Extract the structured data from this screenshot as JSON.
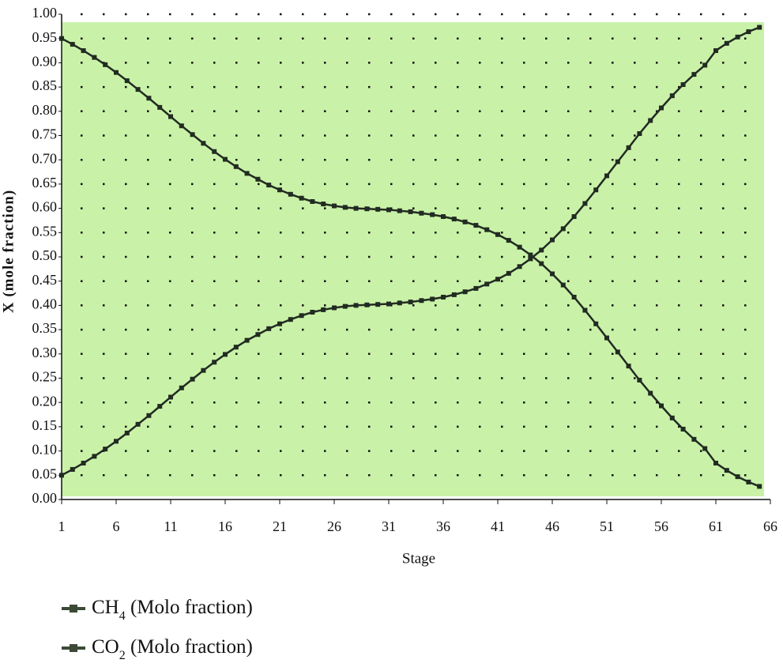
{
  "chart_data": {
    "type": "line",
    "x_label": "Stage",
    "y_label": "X (mole fraction)",
    "x": [
      1,
      2,
      3,
      4,
      5,
      6,
      7,
      8,
      9,
      10,
      11,
      12,
      13,
      14,
      15,
      16,
      17,
      18,
      19,
      20,
      21,
      22,
      23,
      24,
      25,
      26,
      27,
      28,
      29,
      30,
      31,
      32,
      33,
      34,
      35,
      36,
      37,
      38,
      39,
      40,
      41,
      42,
      43,
      44,
      45,
      46,
      47,
      48,
      49,
      50,
      51,
      52,
      53,
      54,
      55,
      56,
      57,
      58,
      59,
      60,
      61,
      62,
      63,
      64,
      65
    ],
    "series": [
      {
        "name": "CH4 (Molo fraction)",
        "color": "#222b22",
        "values": [
          0.95,
          0.938,
          0.925,
          0.911,
          0.896,
          0.88,
          0.863,
          0.845,
          0.827,
          0.808,
          0.789,
          0.77,
          0.752,
          0.734,
          0.717,
          0.701,
          0.686,
          0.672,
          0.66,
          0.648,
          0.638,
          0.629,
          0.621,
          0.614,
          0.609,
          0.605,
          0.602,
          0.6,
          0.599,
          0.598,
          0.597,
          0.595,
          0.593,
          0.59,
          0.587,
          0.583,
          0.578,
          0.572,
          0.565,
          0.556,
          0.546,
          0.534,
          0.52,
          0.504,
          0.486,
          0.465,
          0.442,
          0.417,
          0.39,
          0.362,
          0.333,
          0.304,
          0.275,
          0.246,
          0.219,
          0.193,
          0.168,
          0.145,
          0.124,
          0.105,
          0.075,
          0.06,
          0.047,
          0.036,
          0.027
        ]
      },
      {
        "name": "CO2 (Molo fraction)",
        "color": "#222b22",
        "values": [
          0.05,
          0.062,
          0.075,
          0.089,
          0.104,
          0.12,
          0.137,
          0.155,
          0.173,
          0.192,
          0.211,
          0.23,
          0.248,
          0.266,
          0.283,
          0.299,
          0.314,
          0.328,
          0.34,
          0.352,
          0.362,
          0.371,
          0.379,
          0.386,
          0.391,
          0.395,
          0.398,
          0.4,
          0.401,
          0.402,
          0.403,
          0.405,
          0.407,
          0.41,
          0.413,
          0.417,
          0.422,
          0.428,
          0.435,
          0.444,
          0.454,
          0.466,
          0.48,
          0.496,
          0.514,
          0.535,
          0.558,
          0.583,
          0.61,
          0.638,
          0.667,
          0.696,
          0.725,
          0.754,
          0.781,
          0.807,
          0.832,
          0.855,
          0.876,
          0.895,
          0.925,
          0.94,
          0.953,
          0.964,
          0.973
        ]
      }
    ],
    "xlim": [
      1,
      66
    ],
    "xticks": [
      1,
      6,
      11,
      16,
      21,
      26,
      31,
      36,
      41,
      46,
      51,
      56,
      61,
      66
    ],
    "ylim": [
      0,
      1
    ],
    "yticks": [
      {
        "value": 0,
        "label": "0.00"
      },
      {
        "value": 0.05,
        "label": "0.05"
      },
      {
        "value": 0.1,
        "label": "0.10"
      },
      {
        "value": 0.15,
        "label": "0.15"
      },
      {
        "value": 0.2,
        "label": "0.20"
      },
      {
        "value": 0.25,
        "label": "0.25"
      },
      {
        "value": 0.3,
        "label": "0.30"
      },
      {
        "value": 0.35,
        "label": "0.35"
      },
      {
        "value": 0.4,
        "label": "0.40"
      },
      {
        "value": 0.45,
        "label": "0.45"
      },
      {
        "value": 0.5,
        "label": "0.50"
      },
      {
        "value": 0.55,
        "label": "0.55"
      },
      {
        "value": 0.6,
        "label": "0.60"
      },
      {
        "value": 0.65,
        "label": "0.65"
      },
      {
        "value": 0.7,
        "label": "0.70"
      },
      {
        "value": 0.75,
        "label": "0.75"
      },
      {
        "value": 0.8,
        "label": "0.80"
      },
      {
        "value": 0.85,
        "label": "0.85"
      },
      {
        "value": 0.9,
        "label": "0.90"
      },
      {
        "value": 0.95,
        "label": "0.95"
      },
      {
        "value": 1,
        "label": "1.00"
      }
    ],
    "grid": true,
    "background": "#c9f2a8",
    "legend": "bottom-left",
    "legend_color": "#3b4a36"
  }
}
